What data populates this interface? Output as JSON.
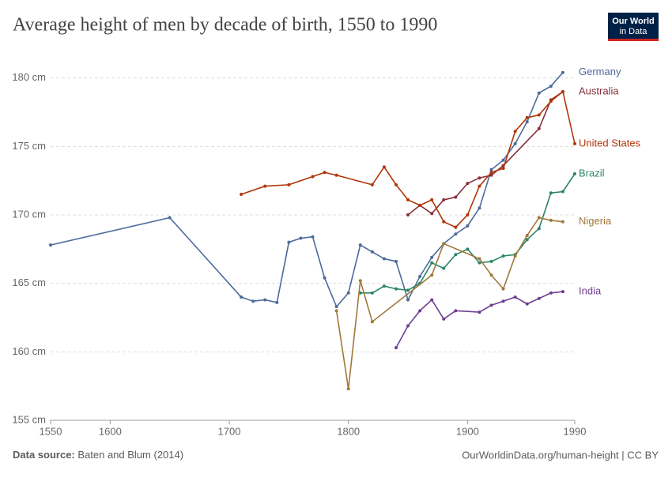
{
  "chart_data": {
    "type": "line",
    "title": "Average height of men by decade of birth, 1550 to 1990",
    "logo": [
      "Our World",
      "in Data"
    ],
    "source_label": "Data source:",
    "source": "Baten and Blum (2014)",
    "url": "OurWorldinData.org/human-height | CC BY",
    "xlim": [
      1550,
      1990
    ],
    "xticks": [
      1550,
      1600,
      1700,
      1800,
      1900,
      1990
    ],
    "ylim": [
      155,
      182
    ],
    "yticks": [
      {
        "value": 155,
        "label": "155 cm"
      },
      {
        "value": 160,
        "label": "160 cm"
      },
      {
        "value": 165,
        "label": "165 cm"
      },
      {
        "value": 170,
        "label": "170 cm"
      },
      {
        "value": 175,
        "label": "175 cm"
      },
      {
        "value": 180,
        "label": "180 cm"
      }
    ],
    "grid": true,
    "series": [
      {
        "name": "Germany",
        "color": "#4c6a9c",
        "x": [
          1550,
          1650,
          1710,
          1720,
          1730,
          1740,
          1750,
          1760,
          1770,
          1780,
          1790,
          1800,
          1810,
          1820,
          1830,
          1840,
          1850,
          1860,
          1870,
          1880,
          1890,
          1900,
          1910,
          1920,
          1930,
          1940,
          1950,
          1960,
          1970,
          1980
        ],
        "values": [
          167.8,
          169.8,
          164.0,
          163.7,
          163.8,
          163.6,
          168.0,
          168.3,
          168.4,
          165.4,
          163.3,
          164.3,
          167.8,
          167.3,
          166.8,
          166.6,
          163.8,
          165.5,
          166.9,
          167.9,
          168.6,
          169.2,
          170.5,
          173.3,
          174.0,
          175.2,
          176.8,
          178.9,
          179.4,
          180.4
        ]
      },
      {
        "name": "Australia",
        "color": "#883039",
        "x": [
          1850,
          1860,
          1870,
          1880,
          1890,
          1900,
          1910,
          1920,
          1930,
          1960,
          1970,
          1980
        ],
        "values": [
          170.0,
          170.7,
          170.1,
          171.1,
          171.3,
          172.3,
          172.7,
          172.9,
          173.6,
          176.3,
          178.4,
          179.0
        ]
      },
      {
        "name": "United States",
        "color": "#b13507",
        "x": [
          1710,
          1730,
          1750,
          1770,
          1780,
          1790,
          1820,
          1830,
          1840,
          1850,
          1860,
          1870,
          1880,
          1890,
          1900,
          1910,
          1920,
          1930,
          1940,
          1950,
          1960,
          1970,
          1980,
          1990
        ],
        "values": [
          171.5,
          172.1,
          172.2,
          172.8,
          173.1,
          172.9,
          172.2,
          173.5,
          172.2,
          171.1,
          170.7,
          171.1,
          169.5,
          169.1,
          170.0,
          172.1,
          173.1,
          173.4,
          176.1,
          177.1,
          177.3,
          178.3,
          179.0,
          175.2
        ]
      },
      {
        "name": "Brazil",
        "color": "#2c8465",
        "x": [
          1810,
          1820,
          1830,
          1840,
          1850,
          1860,
          1870,
          1880,
          1890,
          1900,
          1910,
          1920,
          1930,
          1940,
          1950,
          1960,
          1970,
          1980,
          1990
        ],
        "values": [
          164.3,
          164.3,
          164.8,
          164.6,
          164.5,
          165.0,
          166.5,
          166.1,
          167.1,
          167.5,
          166.5,
          166.6,
          167.0,
          167.1,
          168.2,
          169.0,
          171.6,
          171.7,
          173.0
        ]
      },
      {
        "name": "Nigeria",
        "color": "#a2773b",
        "x": [
          1790,
          1800,
          1810,
          1820,
          1870,
          1880,
          1910,
          1920,
          1930,
          1940,
          1950,
          1960,
          1970,
          1980
        ],
        "values": [
          163.0,
          157.3,
          165.2,
          162.2,
          165.6,
          167.9,
          166.8,
          165.6,
          164.6,
          167.0,
          168.5,
          169.8,
          169.6,
          169.5
        ]
      },
      {
        "name": "India",
        "color": "#6d3e91",
        "x": [
          1840,
          1850,
          1860,
          1870,
          1880,
          1890,
          1910,
          1920,
          1930,
          1940,
          1950,
          1960,
          1970,
          1980
        ],
        "values": [
          160.3,
          161.9,
          163.0,
          163.8,
          162.4,
          163.0,
          162.9,
          163.4,
          163.7,
          164.0,
          163.5,
          163.9,
          164.3,
          164.4
        ]
      }
    ]
  }
}
